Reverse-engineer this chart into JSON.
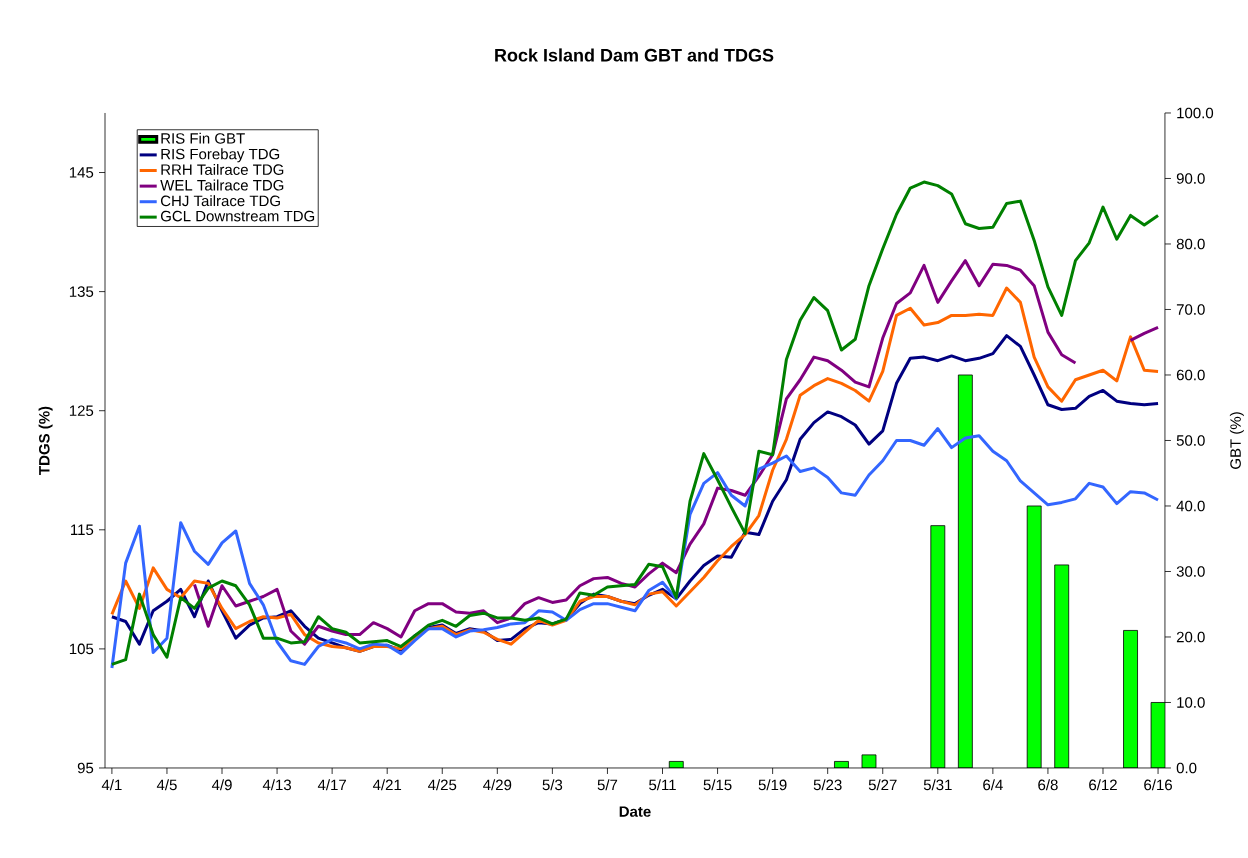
{
  "chart_data": {
    "type": "line",
    "title": "Rock Island Dam GBT and TDGS",
    "xlabel": "Date",
    "ylabel": "TDGS (%)",
    "y2label": "GBT (%)",
    "categories": [
      "4/1",
      null,
      null,
      null,
      "4/5",
      null,
      null,
      null,
      "4/9",
      null,
      null,
      null,
      "4/13",
      null,
      null,
      null,
      "4/17",
      null,
      null,
      null,
      "4/21",
      null,
      null,
      null,
      "4/25",
      null,
      null,
      null,
      "4/29",
      null,
      null,
      null,
      "5/3",
      null,
      null,
      null,
      "5/7",
      null,
      null,
      null,
      "5/11",
      null,
      null,
      null,
      "5/15",
      null,
      null,
      null,
      "5/19",
      null,
      null,
      null,
      "5/23",
      null,
      null,
      null,
      "5/27",
      null,
      null,
      null,
      "5/31",
      null,
      null,
      null,
      "6/4",
      null,
      null,
      null,
      "6/8",
      null,
      null,
      null,
      "6/12",
      null,
      null,
      null,
      "6/16"
    ],
    "series": [
      {
        "name": "RIS Fin GBT",
        "type": "bar",
        "axis": "y2",
        "color": "#00ff00",
        "values": [
          null,
          null,
          null,
          null,
          null,
          null,
          null,
          null,
          null,
          null,
          null,
          null,
          null,
          null,
          null,
          null,
          null,
          null,
          null,
          null,
          null,
          null,
          null,
          null,
          null,
          null,
          null,
          null,
          null,
          null,
          null,
          null,
          null,
          null,
          null,
          null,
          null,
          null,
          null,
          null,
          null,
          1,
          null,
          null,
          null,
          null,
          null,
          null,
          null,
          null,
          null,
          null,
          null,
          1,
          null,
          2,
          null,
          null,
          null,
          null,
          37,
          null,
          60,
          null,
          null,
          null,
          null,
          40,
          null,
          31,
          null,
          null,
          null,
          null,
          21,
          null,
          10
        ]
      },
      {
        "name": "RIS Forebay TDG",
        "color": "#000080",
        "values": [
          107.7,
          107.3,
          105.4,
          108.2,
          109.0,
          110.0,
          107.7,
          110.7,
          108.2,
          105.9,
          107.0,
          107.6,
          107.7,
          108.2,
          106.9,
          105.9,
          105.5,
          105.1,
          104.8,
          105.2,
          105.3,
          104.9,
          106.1,
          106.8,
          107.0,
          106.3,
          106.7,
          106.5,
          105.7,
          105.8,
          106.7,
          107.2,
          107.1,
          107.5,
          108.8,
          109.6,
          109.4,
          109.0,
          108.8,
          109.5,
          110.0,
          109.2,
          110.7,
          112.0,
          112.8,
          112.7,
          114.8,
          114.6,
          117.4,
          119.2,
          122.6,
          124.0,
          124.9,
          124.5,
          123.8,
          122.2,
          123.3,
          127.3,
          129.4,
          129.5,
          129.2,
          129.6,
          129.2,
          129.4,
          129.8,
          131.3,
          130.4,
          128.0,
          125.5,
          125.1,
          125.2,
          126.2,
          126.7,
          125.8,
          125.6,
          125.5,
          125.6
        ]
      },
      {
        "name": "RRH Tailrace TDG",
        "color": "#ff6600",
        "values": [
          107.9,
          110.7,
          108.4,
          111.8,
          110.0,
          109.3,
          110.7,
          110.5,
          108.4,
          106.7,
          107.3,
          107.7,
          107.6,
          107.9,
          106.2,
          105.5,
          105.2,
          105.1,
          104.8,
          105.2,
          105.2,
          105.0,
          106.0,
          106.7,
          106.9,
          106.2,
          106.6,
          106.4,
          105.8,
          105.4,
          106.4,
          107.4,
          107.0,
          107.4,
          109.0,
          109.4,
          109.4,
          109.0,
          108.7,
          109.6,
          109.8,
          108.6,
          109.8,
          111.0,
          112.4,
          113.6,
          114.6,
          116.2,
          120.0,
          122.6,
          126.3,
          127.1,
          127.7,
          127.3,
          126.7,
          125.8,
          128.3,
          133.0,
          133.6,
          132.2,
          132.4,
          133.0,
          133.0,
          133.1,
          133.0,
          135.3,
          134.1,
          129.5,
          127.0,
          125.8,
          127.6,
          128.0,
          128.4,
          127.5,
          131.2,
          128.4,
          128.3
        ]
      },
      {
        "name": "WEL Tailrace TDG",
        "color": "#800080",
        "values": [
          null,
          null,
          null,
          null,
          null,
          null,
          110.4,
          106.9,
          110.3,
          108.6,
          109.0,
          109.4,
          110.0,
          106.5,
          105.4,
          106.9,
          106.5,
          106.2,
          106.2,
          107.2,
          106.7,
          106.0,
          108.2,
          108.8,
          108.8,
          108.1,
          108.0,
          108.2,
          107.2,
          107.6,
          108.8,
          109.3,
          108.9,
          109.1,
          110.3,
          110.9,
          111.0,
          110.5,
          110.2,
          111.3,
          112.2,
          111.4,
          113.8,
          115.5,
          118.5,
          118.3,
          117.9,
          119.5,
          121.3,
          126.0,
          127.6,
          129.5,
          129.2,
          128.4,
          127.4,
          127.0,
          131.1,
          134.0,
          134.9,
          137.2,
          134.1,
          135.9,
          137.6,
          135.5,
          137.3,
          137.2,
          136.8,
          135.5,
          131.6,
          129.7,
          129.0,
          null,
          null,
          null,
          130.9,
          131.5,
          132.0
        ]
      },
      {
        "name": "CHJ Tailrace TDG",
        "color": "#3366ff",
        "values": [
          103.4,
          112.2,
          115.3,
          104.7,
          105.9,
          115.6,
          113.2,
          112.1,
          113.9,
          114.9,
          110.5,
          108.7,
          105.6,
          104.0,
          103.7,
          105.2,
          105.8,
          105.5,
          105.0,
          105.4,
          105.3,
          104.6,
          105.7,
          106.7,
          106.7,
          106.0,
          106.5,
          106.6,
          106.8,
          107.1,
          107.2,
          108.2,
          108.1,
          107.4,
          108.3,
          108.8,
          108.8,
          108.5,
          108.2,
          109.9,
          110.6,
          109.2,
          116.3,
          118.9,
          119.8,
          117.9,
          117.0,
          120.1,
          120.6,
          121.2,
          119.9,
          120.2,
          119.4,
          118.1,
          117.9,
          119.6,
          120.8,
          122.5,
          122.5,
          122.1,
          123.5,
          121.9,
          122.7,
          122.9,
          121.6,
          120.8,
          119.1,
          118.1,
          117.1,
          117.3,
          117.6,
          118.9,
          118.6,
          117.2,
          118.2,
          118.1,
          117.5
        ]
      },
      {
        "name": "GCL Downstream TDG",
        "color": "#008000",
        "values": [
          103.7,
          104.1,
          109.6,
          106.2,
          104.3,
          109.3,
          108.4,
          110.1,
          110.7,
          110.3,
          108.7,
          105.9,
          105.9,
          105.5,
          105.6,
          107.7,
          106.7,
          106.4,
          105.5,
          105.6,
          105.7,
          105.2,
          106.1,
          107.0,
          107.4,
          106.9,
          107.8,
          108.0,
          107.6,
          107.6,
          107.4,
          107.6,
          107.1,
          107.5,
          109.7,
          109.5,
          110.2,
          110.3,
          110.4,
          112.1,
          111.9,
          109.3,
          117.4,
          121.4,
          119.2,
          116.9,
          114.7,
          121.6,
          121.3,
          129.3,
          132.6,
          134.5,
          133.4,
          130.1,
          131.0,
          135.5,
          138.6,
          141.5,
          143.7,
          144.2,
          143.9,
          143.2,
          140.7,
          140.3,
          140.4,
          142.4,
          142.6,
          139.3,
          135.4,
          133.0,
          137.6,
          139.1,
          142.1,
          139.4,
          141.4,
          140.6,
          141.4
        ]
      }
    ],
    "ylim": [
      95,
      150
    ],
    "yticks": [
      95,
      105,
      115,
      125,
      135,
      145
    ],
    "y2lim": [
      0,
      100
    ],
    "y2ticks": [
      {
        "value": 0,
        "label": "0.0"
      },
      {
        "value": 10,
        "label": "10.0"
      },
      {
        "value": 20,
        "label": "20.0"
      },
      {
        "value": 30,
        "label": "30.0"
      },
      {
        "value": 40,
        "label": "40.0"
      },
      {
        "value": 50,
        "label": "50.0"
      },
      {
        "value": 60,
        "label": "60.0"
      },
      {
        "value": 70,
        "label": "70.0"
      },
      {
        "value": 80,
        "label": "80.0"
      },
      {
        "value": 90,
        "label": "90.0"
      },
      {
        "value": 100,
        "label": "100.0"
      }
    ],
    "legend": "top left"
  }
}
